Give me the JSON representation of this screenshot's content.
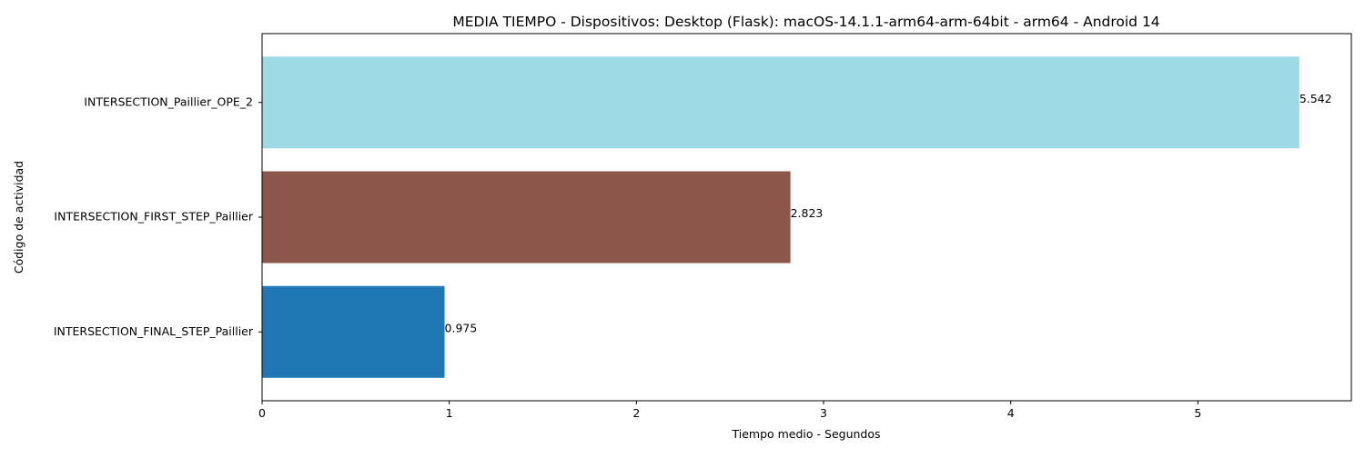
{
  "chart_data": {
    "type": "bar",
    "orientation": "horizontal",
    "title": "MEDIA TIEMPO - Dispositivos: Desktop (Flask): macOS-14.1.1-arm64-arm-64bit - arm64 - Android 14",
    "xlabel": "Tiempo medio - Segundos",
    "ylabel": "Código de actividad",
    "categories": [
      "INTERSECTION_FINAL_STEP_Paillier",
      "INTERSECTION_FIRST_STEP_Paillier",
      "INTERSECTION_Paillier_OPE_2"
    ],
    "values": [
      0.975,
      2.823,
      5.542
    ],
    "value_labels": [
      "0.975",
      "2.823",
      "5.542"
    ],
    "colors": [
      "#1f77b4",
      "#8c564b",
      "#9edae5"
    ],
    "xlim": [
      0,
      5.82
    ],
    "xticks": [
      0,
      1,
      2,
      3,
      4,
      5
    ],
    "xtick_labels": [
      "0",
      "1",
      "2",
      "3",
      "4",
      "5"
    ],
    "grid": false,
    "legend": "none"
  }
}
